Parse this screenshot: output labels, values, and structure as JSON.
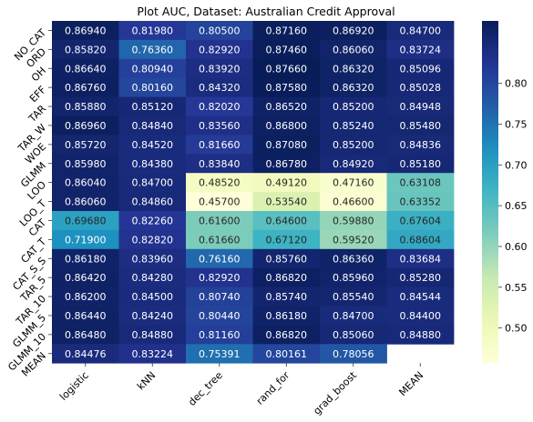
{
  "chart_data": {
    "type": "heatmap",
    "title": "Plot AUC, Dataset: Australian Credit Approval",
    "xlabel": "",
    "ylabel": "",
    "columns": [
      "logistic",
      "kNN",
      "dec_tree",
      "rand_for",
      "grad_boost",
      "MEAN"
    ],
    "rows": [
      "NO_CAT",
      "ORD",
      "OH",
      "EFF",
      "TAR",
      "TAR_W",
      "WOE",
      "GLMM",
      "LOO",
      "LOO_T",
      "CAT",
      "CAT_T",
      "CAT_S_S",
      "TAR_5",
      "TAR_10",
      "GLMM_5",
      "GLMM_10",
      "MEAN"
    ],
    "values": [
      [
        "0.86940",
        "0.81980",
        "0.80500",
        "0.87160",
        "0.86920",
        "0.84700"
      ],
      [
        "0.85820",
        "0.76360",
        "0.82920",
        "0.87460",
        "0.86060",
        "0.83724"
      ],
      [
        "0.86640",
        "0.80940",
        "0.83920",
        "0.87660",
        "0.86320",
        "0.85096"
      ],
      [
        "0.86760",
        "0.80160",
        "0.84320",
        "0.87580",
        "0.86320",
        "0.85028"
      ],
      [
        "0.85880",
        "0.85120",
        "0.82020",
        "0.86520",
        "0.85200",
        "0.84948"
      ],
      [
        "0.86960",
        "0.84840",
        "0.83560",
        "0.86800",
        "0.85240",
        "0.85480"
      ],
      [
        "0.85720",
        "0.84520",
        "0.81660",
        "0.87080",
        "0.85200",
        "0.84836"
      ],
      [
        "0.85980",
        "0.84380",
        "0.83840",
        "0.86780",
        "0.84920",
        "0.85180"
      ],
      [
        "0.86040",
        "0.84700",
        "0.48520",
        "0.49120",
        "0.47160",
        "0.63108"
      ],
      [
        "0.86060",
        "0.84860",
        "0.45700",
        "0.53540",
        "0.46600",
        "0.63352"
      ],
      [
        "0.69680",
        "0.82260",
        "0.61600",
        "0.64600",
        "0.59880",
        "0.67604"
      ],
      [
        "0.71900",
        "0.82820",
        "0.61660",
        "0.67120",
        "0.59520",
        "0.68604"
      ],
      [
        "0.86180",
        "0.83960",
        "0.76160",
        "0.85760",
        "0.86360",
        "0.83684"
      ],
      [
        "0.86420",
        "0.84280",
        "0.82920",
        "0.86820",
        "0.85960",
        "0.85280"
      ],
      [
        "0.86200",
        "0.84500",
        "0.80740",
        "0.85740",
        "0.85540",
        "0.84544"
      ],
      [
        "0.86440",
        "0.84240",
        "0.80440",
        "0.86180",
        "0.84700",
        "0.84400"
      ],
      [
        "0.86480",
        "0.84880",
        "0.81160",
        "0.86820",
        "0.85060",
        "0.84880"
      ],
      [
        "0.84476",
        "0.83224",
        "0.75391",
        "0.80161",
        "0.78056",
        null
      ]
    ],
    "colormap": "YlGnBu",
    "vmin": 0.457,
    "vmax": 0.8766,
    "colorbar_ticks": [
      "0.50",
      "0.55",
      "0.60",
      "0.65",
      "0.70",
      "0.75",
      "0.80"
    ],
    "grid": false,
    "legend": "colorbar-right"
  }
}
